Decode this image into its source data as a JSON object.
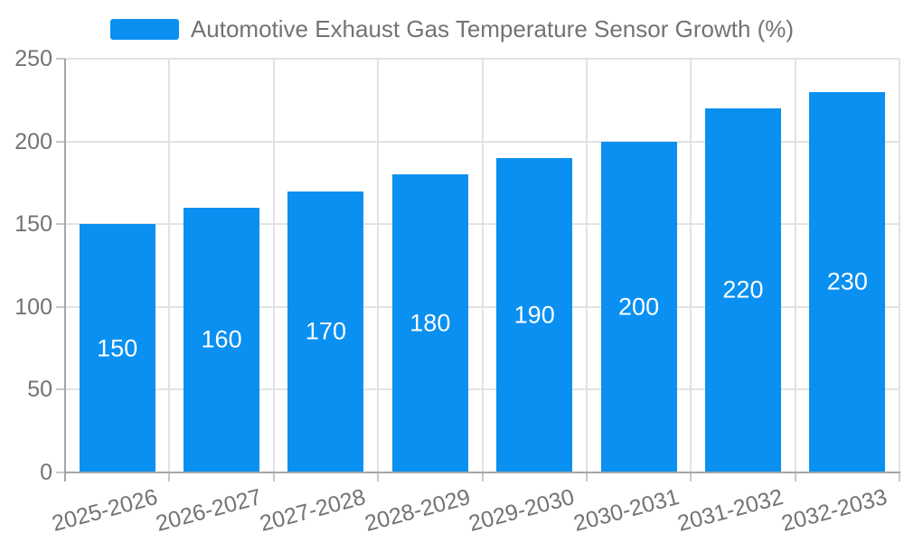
{
  "legend": {
    "label": "Automotive Exhaust Gas Temperature Sensor Growth (%)",
    "swatch_color": "#0a90f0"
  },
  "colors": {
    "bar": "#0a90f0",
    "bar_label_text": "#ffffff",
    "axis_line": "#a6a6a6",
    "tick_mark": "#c8c8c8",
    "grid_line": "#e2e2e2",
    "label_text": "#737373",
    "background": "#ffffff"
  },
  "chart_data": {
    "type": "bar",
    "title": "Automotive Exhaust Gas Temperature Sensor Growth (%)",
    "categories": [
      "2025-2026",
      "2026-2027",
      "2027-2028",
      "2028-2029",
      "2029-2030",
      "2030-2031",
      "2031-2032",
      "2032-2033"
    ],
    "values": [
      150,
      160,
      170,
      180,
      190,
      200,
      220,
      230
    ],
    "series": [
      {
        "name": "Automotive Exhaust Gas Temperature Sensor Growth (%)",
        "values": [
          150,
          160,
          170,
          180,
          190,
          200,
          220,
          230
        ]
      }
    ],
    "xlabel": "",
    "ylabel": "",
    "ylim": [
      0,
      250
    ],
    "yticks": [
      0,
      50,
      100,
      150,
      200,
      250
    ],
    "grid": true,
    "legend_position": "top-center",
    "bar_labels": "inside-center",
    "x_label_rotation_deg": -15
  }
}
